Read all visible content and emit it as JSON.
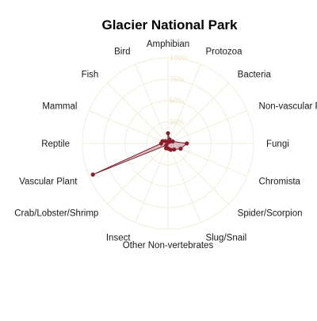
{
  "chart_data": {
    "type": "radar",
    "title": "Glacier National Park",
    "categories": [
      "Amphibian",
      "Protozoa",
      "Bacteria",
      "Non-vascular Pla",
      "Fungi",
      "Chromista",
      "Spider/Scorpion",
      "Slug/Snail",
      "Other Non-vertebrates",
      "Insect",
      "Crab/Lobster/Shrimp",
      "Vascular Plant",
      "Reptile",
      "Mammal",
      "Fish",
      "Bird"
    ],
    "values": [
      12,
      5,
      3,
      6,
      22,
      16,
      10,
      8,
      6,
      6,
      3,
      95,
      8,
      7,
      4,
      1
    ],
    "rlim": [
      0,
      100
    ],
    "rticks": [
      0,
      25,
      50,
      75,
      100
    ],
    "rtick_labels": [
      "0%",
      "25%",
      "50%",
      "75%",
      "100%"
    ],
    "grid": true,
    "colors": {
      "fill": "#d7b3b8",
      "line": "#7a1f2b",
      "point": "#8b1e2d",
      "grid": "#f3edd6",
      "tick": "#ece5c9"
    }
  }
}
